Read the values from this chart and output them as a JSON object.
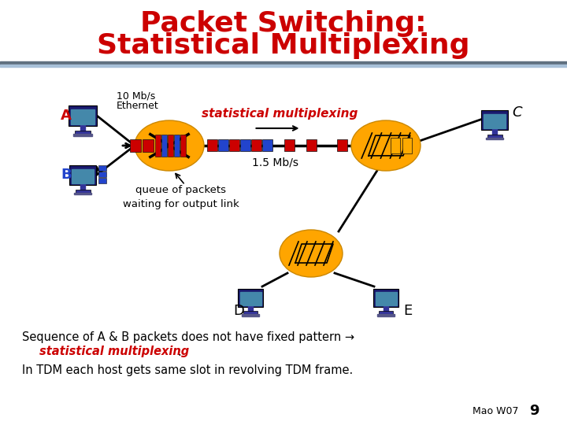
{
  "title_line1": "Packet Switching:",
  "title_line2": "Statistical Multiplexing",
  "title_color": "#CC0000",
  "title_fontsize": 26,
  "bg_color": "#FFFFFF",
  "node_color": "#FFA500",
  "stat_mux_label": "statistical multiplexing",
  "stat_mux_color": "#CC0000",
  "eth_label1": "10 Mb/s",
  "eth_label2": "Ethernet",
  "link_label": "1.5 Mb/s",
  "queue_label": "queue of packets\nwaiting for output link",
  "node_A_label": "A",
  "node_B_label": "B",
  "node_C_label": "C",
  "node_D_label": "D",
  "node_E_label": "E",
  "bottom_text1": "Sequence of A & B packets does not have fixed pattern →",
  "bottom_text2": "statistical multiplexing",
  "bottom_text2b": ".",
  "bottom_text3": "In TDM each host gets same slot in revolving TDM frame.",
  "bottom_text_color": "#000000",
  "bottom_red_color": "#CC0000",
  "footer_text": "Mao W07",
  "footer_num": "9",
  "header_line_color1": "#708090",
  "header_line_color2": "#B0C8E0"
}
